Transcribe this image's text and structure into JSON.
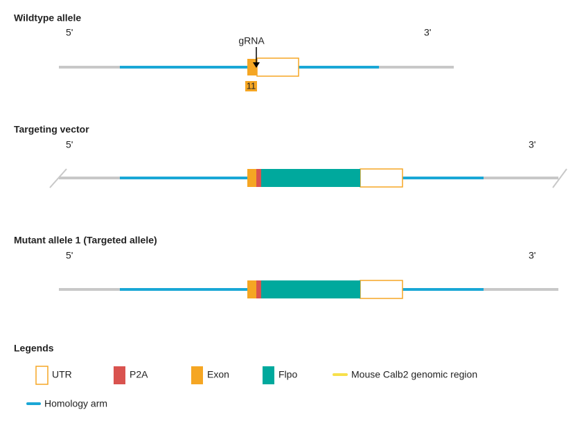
{
  "sections": [
    {
      "title": "Wildtype allele",
      "five_prime": "5'",
      "three_prime": "3'"
    },
    {
      "title": "Targeting vector",
      "five_prime": "5'",
      "three_prime": "3'"
    },
    {
      "title": "Mutant allele 1 (Targeted allele)",
      "five_prime": "5'",
      "three_prime": "3'"
    }
  ],
  "grna": "gRNA",
  "exon_label": "11",
  "legends": {
    "title": "Legends",
    "items": [
      "UTR",
      "P2A",
      "Exon",
      "Flpo",
      "Mouse Calb2 genomic region",
      "Homology arm"
    ]
  }
}
